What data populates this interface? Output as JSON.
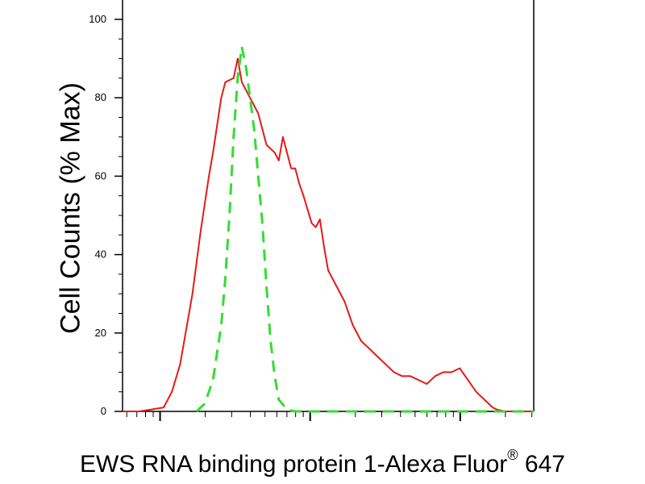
{
  "chart_data": {
    "type": "line",
    "xlabel_text": "EWS RNA binding protein 1-Alexa Fluor",
    "xlabel_superscript": "®",
    "xlabel_suffix": " 647",
    "ylabel": "Cell Counts (% Max)",
    "ylim": [
      0,
      100
    ],
    "yticks": [
      0,
      20,
      40,
      60,
      80,
      100
    ],
    "xscale": "log",
    "xlim": [
      0,
      100
    ],
    "grid": false,
    "series": [
      {
        "color": "#e41a1a",
        "line_style": "solid",
        "x": [
          0,
          4,
          7,
          10,
          12,
          14,
          17,
          19,
          21,
          22,
          24,
          25,
          27,
          28,
          29,
          30,
          31,
          32,
          33,
          34,
          35,
          37,
          38,
          39,
          41,
          42,
          43,
          44,
          46,
          47,
          48,
          49,
          50,
          52,
          54,
          56,
          58,
          60,
          62,
          64,
          66,
          68,
          70,
          72,
          74,
          76,
          78,
          80,
          82,
          84,
          86,
          88,
          90,
          91,
          93,
          95,
          97,
          100
        ],
        "y": [
          0,
          0,
          0.5,
          1,
          5,
          12,
          30,
          46,
          60,
          66,
          80,
          84,
          85,
          90,
          84,
          82,
          80,
          78,
          76,
          72,
          68,
          66,
          64,
          70,
          62,
          62,
          58,
          55,
          48,
          47,
          49,
          42,
          36,
          32,
          28,
          22,
          18,
          16,
          14,
          12,
          10,
          9,
          9,
          8,
          7,
          9,
          10,
          10,
          11,
          8,
          5,
          3,
          1,
          0.5,
          0,
          0,
          0,
          0
        ]
      },
      {
        "color": "#33dd33",
        "line_style": "dashed",
        "x": [
          18,
          20,
          22,
          24,
          25,
          26,
          27,
          28,
          29,
          30,
          31,
          32,
          33,
          34,
          35,
          36,
          37,
          38,
          40,
          42,
          45,
          50,
          60,
          70,
          80,
          90,
          100
        ],
        "y": [
          0,
          2,
          8,
          22,
          34,
          50,
          70,
          85,
          93,
          88,
          80,
          72,
          60,
          48,
          32,
          18,
          9,
          3,
          0.5,
          0,
          0,
          0,
          0,
          0,
          0,
          0,
          0
        ]
      }
    ]
  }
}
